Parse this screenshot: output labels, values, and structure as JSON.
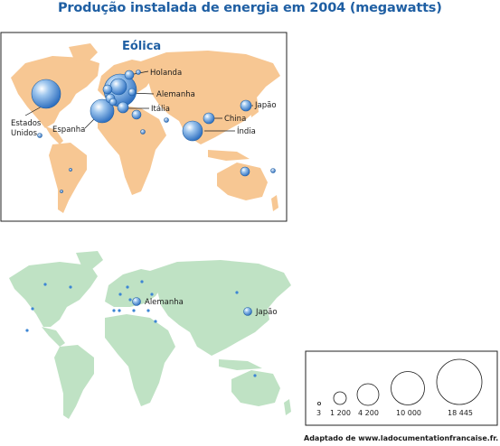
{
  "title": "Produção instalada de energia em 2004 (megawatts)",
  "panel_top": {
    "title": "Eólica",
    "labels": {
      "holanda": "Holanda",
      "alemanha": "Alemanha",
      "italia": "Itália",
      "japao": "Japão",
      "china": "China",
      "india": "Índia",
      "espanha": "Espanha",
      "estados": "Estados",
      "unidos": "Unidos"
    }
  },
  "panel_bottom": {
    "labels": {
      "alemanha": "Alemanha",
      "japao": "Japão"
    }
  },
  "legend": {
    "values": [
      "3",
      "1 200",
      "4 200",
      "10 000",
      "18 445"
    ]
  },
  "source": "Adaptado de www.ladocumentationfrancaise.fr.",
  "colors": {
    "title": "#1f5fa3",
    "land_top": "#f7c793",
    "land_bottom": "#bfe2c4",
    "bubble": "#3d86d4",
    "bubble_dark": "#1f5fa3"
  }
}
